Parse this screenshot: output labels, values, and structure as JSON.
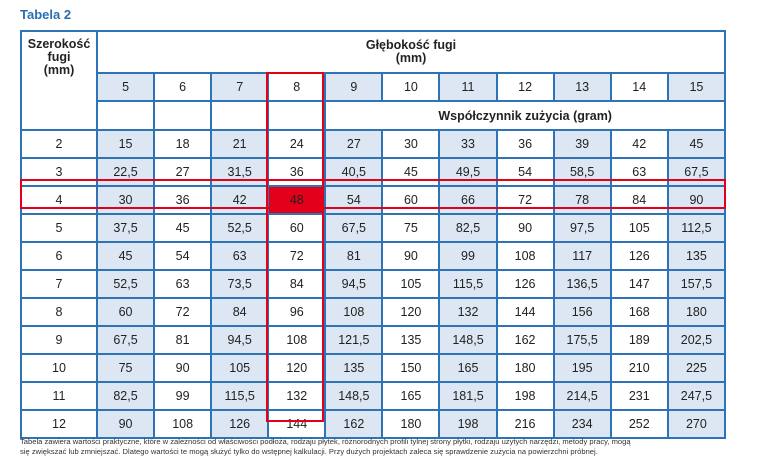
{
  "title": "Tabela 2",
  "header": {
    "width_label_line1": "Szerokość fugi",
    "width_label_line2": "(mm)",
    "depth_label_line1": "Głębokość fugi",
    "depth_label_line2": "(mm)",
    "coefficient_label": "Współczynnik zużycia (gram)"
  },
  "depths": [
    "5",
    "6",
    "7",
    "8",
    "9",
    "10",
    "11",
    "12",
    "13",
    "14",
    "15"
  ],
  "rows": [
    {
      "width": "2",
      "values": [
        "15",
        "18",
        "21",
        "24",
        "27",
        "30",
        "33",
        "36",
        "39",
        "42",
        "45"
      ]
    },
    {
      "width": "3",
      "values": [
        "22,5",
        "27",
        "31,5",
        "36",
        "40,5",
        "45",
        "49,5",
        "54",
        "58,5",
        "63",
        "67,5"
      ]
    },
    {
      "width": "4",
      "values": [
        "30",
        "36",
        "42",
        "48",
        "54",
        "60",
        "66",
        "72",
        "78",
        "84",
        "90"
      ]
    },
    {
      "width": "5",
      "values": [
        "37,5",
        "45",
        "52,5",
        "60",
        "67,5",
        "75",
        "82,5",
        "90",
        "97,5",
        "105",
        "112,5"
      ]
    },
    {
      "width": "6",
      "values": [
        "45",
        "54",
        "63",
        "72",
        "81",
        "90",
        "99",
        "108",
        "117",
        "126",
        "135"
      ]
    },
    {
      "width": "7",
      "values": [
        "52,5",
        "63",
        "73,5",
        "84",
        "94,5",
        "105",
        "115,5",
        "126",
        "136,5",
        "147",
        "157,5"
      ]
    },
    {
      "width": "8",
      "values": [
        "60",
        "72",
        "84",
        "96",
        "108",
        "120",
        "132",
        "144",
        "156",
        "168",
        "180"
      ]
    },
    {
      "width": "9",
      "values": [
        "67,5",
        "81",
        "94,5",
        "108",
        "121,5",
        "135",
        "148,5",
        "162",
        "175,5",
        "189",
        "202,5"
      ]
    },
    {
      "width": "10",
      "values": [
        "75",
        "90",
        "105",
        "120",
        "135",
        "150",
        "165",
        "180",
        "195",
        "210",
        "225"
      ]
    },
    {
      "width": "11",
      "values": [
        "82,5",
        "99",
        "115,5",
        "132",
        "148,5",
        "165",
        "181,5",
        "198",
        "214,5",
        "231",
        "247,5"
      ]
    },
    {
      "width": "12",
      "values": [
        "90",
        "108",
        "126",
        "144",
        "162",
        "180",
        "198",
        "216",
        "234",
        "252",
        "270"
      ]
    }
  ],
  "highlight": {
    "width": "4",
    "depth": "8",
    "color": "#e3001b"
  },
  "colors": {
    "border": "#2e73b5",
    "shade": "#dde7f3",
    "title": "#2a6fb0"
  },
  "footnote_line1": "Tabela zawiera wartości praktyczne, które w zależności od właściwości podłoża, rodzaju płytek, różnorodnych profili tylnej strony płytki, rodzaju użytych narzędzi, metody pracy, mogą",
  "footnote_line2": "się zwiększać lub zmniejszać. Dlatego wartości te mogą służyć tylko do wstępnej kalkulacji. Przy dużych projektach zaleca się sprawdzenie zużycia na powierzchni próbnej."
}
